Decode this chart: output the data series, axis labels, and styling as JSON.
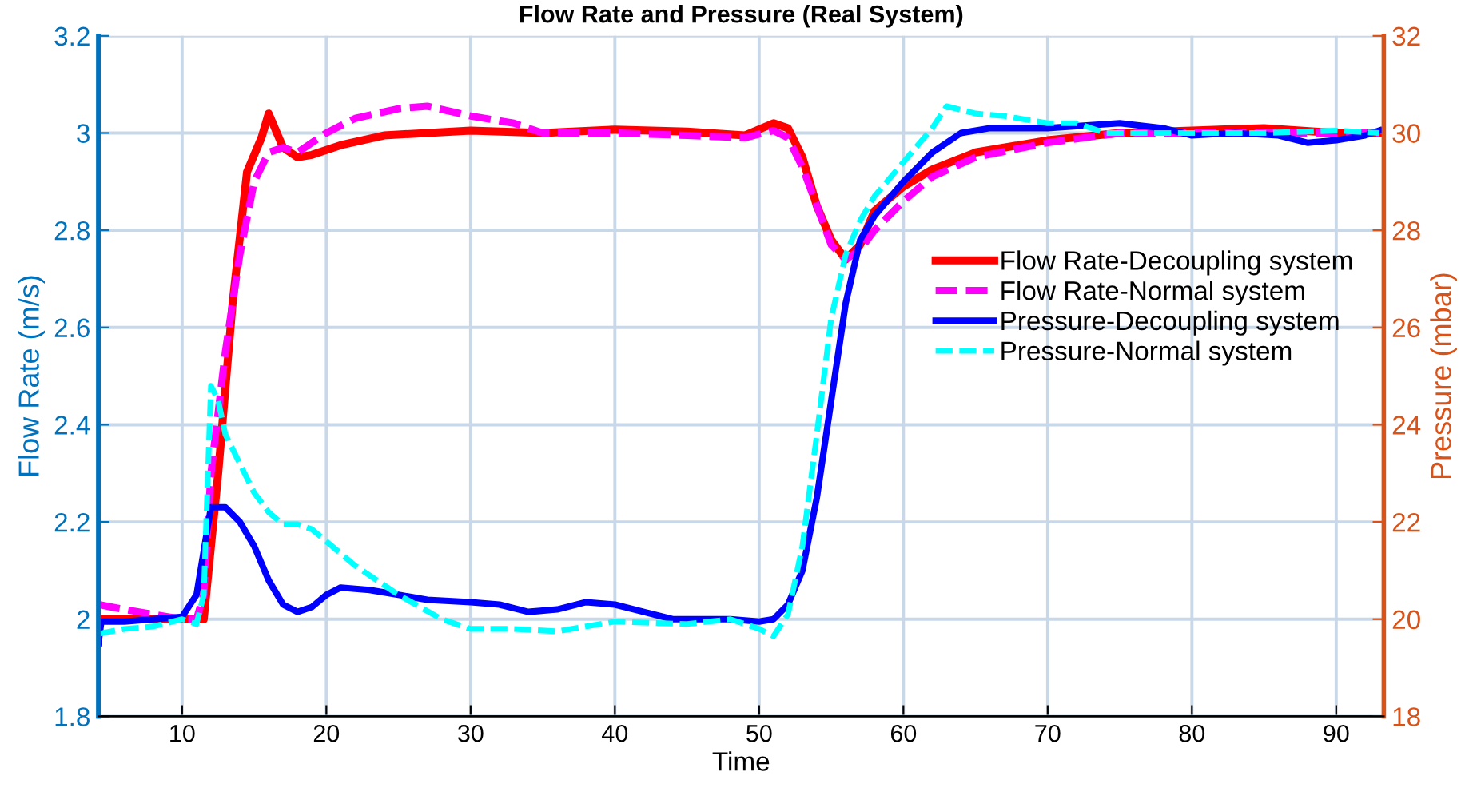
{
  "chart_data": {
    "type": "line",
    "title": "Flow Rate and Pressure (Real System)",
    "xlabel": "Time",
    "ylabel": "Flow Rate (m/s)",
    "y2label": "Pressure (mbar)",
    "xlim": [
      4.2,
      93.3
    ],
    "xticks": [
      10,
      20,
      30,
      40,
      50,
      60,
      70,
      80,
      90
    ],
    "ylim": [
      1.8,
      3.2
    ],
    "yticks": [
      1.8,
      2,
      2.2,
      2.4,
      2.6,
      2.8,
      3,
      3.2
    ],
    "y2lim": [
      18,
      32
    ],
    "y2ticks": [
      18,
      20,
      22,
      24,
      26,
      28,
      30,
      32
    ],
    "grid": true,
    "legend": "right",
    "series": [
      {
        "name": "Flow Rate-Decoupling system",
        "color": "#ff0000",
        "line_style": "solid",
        "x": [
          4.2,
          10,
          11.5,
          12.5,
          13.5,
          14.5,
          15.5,
          16,
          17,
          18,
          19,
          21,
          24,
          30,
          35,
          40,
          45,
          49,
          51,
          52,
          53,
          54,
          55,
          56,
          57,
          58,
          60,
          62,
          65,
          70,
          75,
          80,
          85,
          90,
          93
        ],
        "values": [
          2.0,
          2.0,
          2.0,
          2.3,
          2.65,
          2.92,
          2.99,
          3.04,
          2.97,
          2.95,
          2.955,
          2.975,
          2.995,
          3.005,
          3.0,
          3.007,
          3.003,
          2.995,
          3.02,
          3.01,
          2.95,
          2.85,
          2.78,
          2.74,
          2.77,
          2.84,
          2.89,
          2.925,
          2.96,
          2.985,
          3.0,
          3.005,
          3.01,
          3.0,
          3.0
        ]
      },
      {
        "name": "Flow Rate-Normal system",
        "color": "#ff00ff",
        "line_style": "dashed",
        "x": [
          4.2,
          6,
          8,
          10,
          11,
          11.5,
          12,
          13,
          14,
          15,
          16,
          17,
          18,
          20,
          22,
          25,
          27,
          30,
          33,
          35,
          40,
          45,
          49,
          51,
          52,
          53,
          54,
          55,
          56,
          57,
          58,
          60,
          62,
          65,
          70,
          75,
          80,
          90,
          93
        ],
        "values": [
          2.03,
          2.02,
          2.01,
          2.0,
          2.0,
          2.05,
          2.3,
          2.55,
          2.75,
          2.9,
          2.96,
          2.97,
          2.96,
          3.0,
          3.03,
          3.05,
          3.055,
          3.035,
          3.02,
          3.0,
          3.0,
          2.995,
          2.99,
          3.005,
          2.99,
          2.93,
          2.85,
          2.77,
          2.74,
          2.76,
          2.8,
          2.86,
          2.91,
          2.95,
          2.98,
          3.0,
          3.0,
          3.0,
          3.0
        ]
      },
      {
        "name": "Pressure-Decoupling system",
        "color": "#0000ff",
        "line_style": "solid",
        "axis": "y2",
        "x": [
          4.2,
          4.4,
          6,
          8,
          10,
          11,
          12,
          13,
          14,
          15,
          16,
          17,
          18,
          19,
          20,
          21,
          23,
          25,
          27,
          30,
          32,
          34,
          36,
          38,
          40,
          42,
          44,
          48,
          50,
          51,
          52,
          53,
          54,
          55,
          56,
          57,
          58,
          60,
          62,
          64,
          66,
          70,
          75,
          78,
          80,
          83,
          86,
          88,
          90,
          92,
          93
        ],
        "values": [
          19.5,
          19.95,
          19.95,
          20.0,
          20.05,
          20.5,
          22.3,
          22.3,
          22.0,
          21.5,
          20.8,
          20.3,
          20.15,
          20.25,
          20.5,
          20.65,
          20.6,
          20.5,
          20.4,
          20.35,
          20.3,
          20.15,
          20.2,
          20.35,
          20.3,
          20.15,
          20.0,
          20.0,
          19.95,
          20.0,
          20.3,
          21.0,
          22.5,
          24.5,
          26.5,
          27.8,
          28.3,
          29.0,
          29.6,
          30.0,
          30.1,
          30.1,
          30.2,
          30.1,
          29.95,
          30.0,
          29.95,
          29.8,
          29.85,
          29.95,
          30.05
        ]
      },
      {
        "name": "Pressure-Normal system",
        "color": "#00ffff",
        "line_style": "dashed",
        "axis": "y2",
        "x": [
          4.2,
          6,
          8,
          10,
          11,
          11.5,
          12,
          12.5,
          13,
          14,
          15,
          16,
          17,
          18,
          19,
          20,
          22,
          25,
          28,
          30,
          33,
          36,
          40,
          45,
          48,
          50,
          51,
          52,
          53,
          54,
          55,
          56,
          57,
          58,
          60,
          62,
          63,
          65,
          67,
          70,
          72,
          74,
          76,
          80,
          85,
          90,
          93
        ],
        "values": [
          19.7,
          19.8,
          19.85,
          20.0,
          19.9,
          20.5,
          24.8,
          24.5,
          23.8,
          23.2,
          22.6,
          22.2,
          21.95,
          21.95,
          21.85,
          21.6,
          21.1,
          20.5,
          20.0,
          19.8,
          19.8,
          19.75,
          19.95,
          19.9,
          20.0,
          19.8,
          19.65,
          20.1,
          21.5,
          23.8,
          26.2,
          27.5,
          28.2,
          28.7,
          29.4,
          30.1,
          30.55,
          30.4,
          30.35,
          30.2,
          30.2,
          30.0,
          30.0,
          30.0,
          30.0,
          30.05,
          30.0
        ]
      }
    ]
  }
}
